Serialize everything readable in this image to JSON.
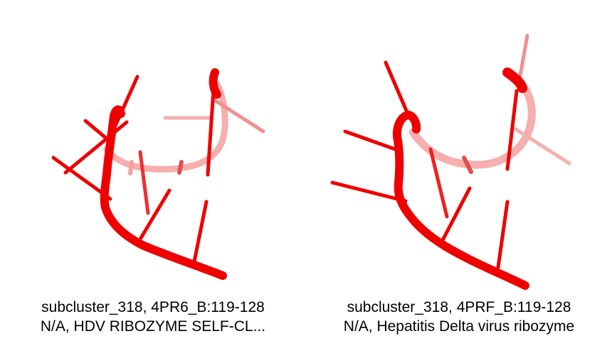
{
  "colors": {
    "backbone": "#ee0000",
    "backbone_faded": "#f08080",
    "text": "#000000",
    "background": "#ffffff"
  },
  "panels": [
    {
      "caption_line1": "subcluster_318, 4PR6_B:119-128",
      "caption_line2": "N/A, HDV RIBOZYME SELF-CL..."
    },
    {
      "caption_line1": "subcluster_318, 4PRF_B:119-128",
      "caption_line2": "N/A, Hepatitis Delta virus ribozyme"
    }
  ]
}
